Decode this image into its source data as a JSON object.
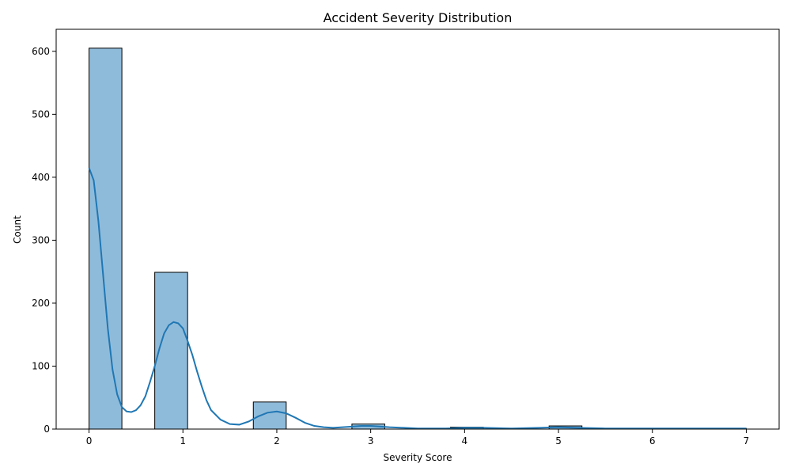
{
  "chart_data": {
    "type": "bar",
    "title": "Accident Severity Distribution",
    "xlabel": "Severity Score",
    "ylabel": "Count",
    "xlim": [
      -0.35,
      7.35
    ],
    "ylim": [
      0,
      635
    ],
    "xticks": [
      0,
      1,
      2,
      3,
      4,
      5,
      6,
      7
    ],
    "yticks": [
      0,
      100,
      200,
      300,
      400,
      500,
      600
    ],
    "grid": false,
    "legend": "none",
    "bin_width": 0.35,
    "bins": [
      {
        "x0": 0.0,
        "count": 605
      },
      {
        "x0": 0.35,
        "count": 0
      },
      {
        "x0": 0.7,
        "count": 249
      },
      {
        "x0": 1.05,
        "count": 0
      },
      {
        "x0": 1.4,
        "count": 0
      },
      {
        "x0": 1.75,
        "count": 43
      },
      {
        "x0": 2.1,
        "count": 0
      },
      {
        "x0": 2.45,
        "count": 0
      },
      {
        "x0": 2.8,
        "count": 8
      },
      {
        "x0": 3.15,
        "count": 0
      },
      {
        "x0": 3.5,
        "count": 0
      },
      {
        "x0": 3.85,
        "count": 3
      },
      {
        "x0": 4.2,
        "count": 0
      },
      {
        "x0": 4.55,
        "count": 0
      },
      {
        "x0": 4.9,
        "count": 5
      },
      {
        "x0": 5.25,
        "count": 0
      },
      {
        "x0": 5.6,
        "count": 0
      },
      {
        "x0": 5.95,
        "count": 1
      },
      {
        "x0": 6.3,
        "count": 0
      },
      {
        "x0": 6.65,
        "count": 1
      }
    ],
    "kde_line": {
      "x": [
        0,
        0.05,
        0.1,
        0.15,
        0.2,
        0.25,
        0.3,
        0.35,
        0.4,
        0.45,
        0.5,
        0.55,
        0.6,
        0.65,
        0.7,
        0.75,
        0.8,
        0.85,
        0.9,
        0.95,
        1.0,
        1.05,
        1.1,
        1.15,
        1.2,
        1.25,
        1.3,
        1.4,
        1.5,
        1.6,
        1.7,
        1.8,
        1.9,
        2.0,
        2.1,
        2.2,
        2.3,
        2.4,
        2.5,
        2.6,
        2.7,
        2.8,
        2.9,
        3.0,
        3.2,
        3.5,
        3.8,
        4.0,
        4.2,
        4.5,
        4.8,
        5.0,
        5.2,
        5.5,
        6.0,
        6.5,
        7.0
      ],
      "y": [
        415,
        395,
        330,
        245,
        160,
        95,
        55,
        35,
        28,
        27,
        30,
        38,
        52,
        75,
        100,
        128,
        152,
        165,
        170,
        168,
        160,
        140,
        118,
        92,
        68,
        46,
        30,
        15,
        8,
        7,
        12,
        20,
        26,
        28,
        25,
        18,
        10,
        5,
        3,
        2,
        3,
        4,
        5,
        5,
        3,
        1,
        1,
        2,
        2,
        1,
        2,
        3,
        2,
        1,
        1,
        1,
        1
      ]
    },
    "colors": {
      "bar_fill": "#8fbbda",
      "bar_edge": "#000000",
      "line": "#1f77b4"
    }
  }
}
